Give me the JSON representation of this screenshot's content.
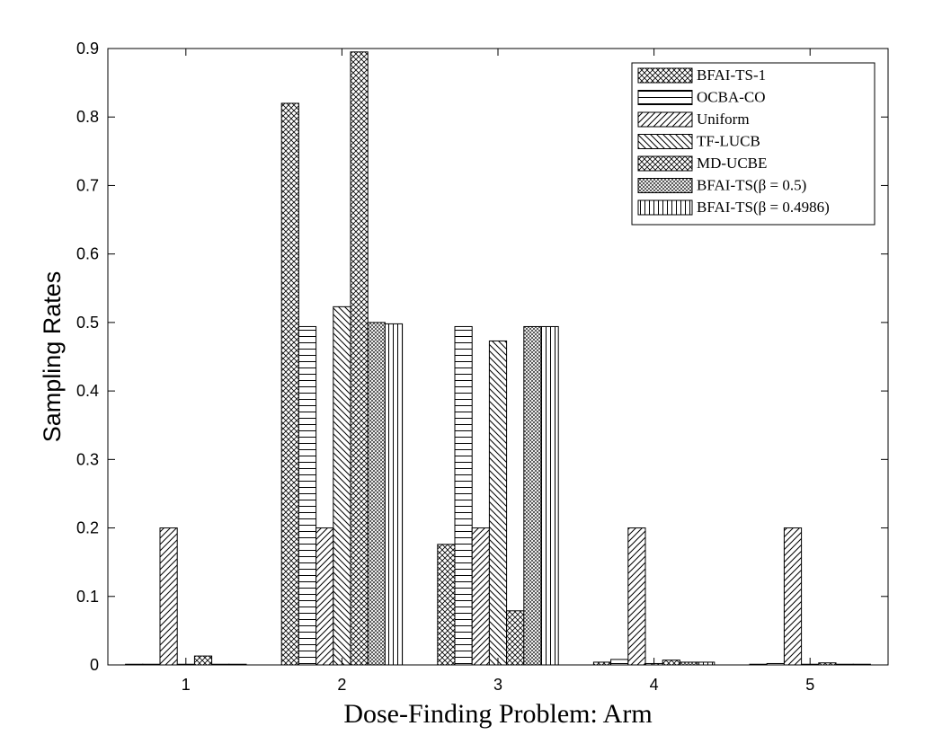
{
  "chart_data": {
    "type": "bar",
    "title": "",
    "xlabel": "Dose-Finding Problem: Arm",
    "ylabel": "Sampling Rates",
    "categories": [
      "1",
      "2",
      "3",
      "4",
      "5"
    ],
    "ylim": [
      0,
      0.9
    ],
    "yticks": [
      "0",
      "0.1",
      "0.2",
      "0.3",
      "0.4",
      "0.5",
      "0.6",
      "0.7",
      "0.8",
      "0.9"
    ],
    "legend_position": "top-right",
    "grid": false,
    "series": [
      {
        "name": "BFAI-TS-1",
        "pattern": "crosshatch",
        "values": [
          0.001,
          0.82,
          0.176,
          0.004,
          0.001
        ]
      },
      {
        "name": "OCBA-CO",
        "pattern": "horizontal",
        "values": [
          0.001,
          0.494,
          0.494,
          0.008,
          0.002
        ]
      },
      {
        "name": "Uniform",
        "pattern": "diag-up",
        "values": [
          0.2,
          0.2,
          0.2,
          0.2,
          0.2
        ]
      },
      {
        "name": "TF-LUCB",
        "pattern": "diag-down",
        "values": [
          0.001,
          0.523,
          0.473,
          0.002,
          0.001
        ]
      },
      {
        "name": "MD-UCBE",
        "pattern": "crosshatch",
        "values": [
          0.013,
          0.895,
          0.079,
          0.007,
          0.003
        ]
      },
      {
        "name": "BFAI-TS(β = 0.5)",
        "pattern": "fine-crosshatch",
        "values": [
          0.001,
          0.5,
          0.494,
          0.004,
          0.001
        ]
      },
      {
        "name": "BFAI-TS(β = 0.4986)",
        "pattern": "vertical",
        "values": [
          0.001,
          0.498,
          0.494,
          0.004,
          0.001
        ]
      }
    ]
  }
}
